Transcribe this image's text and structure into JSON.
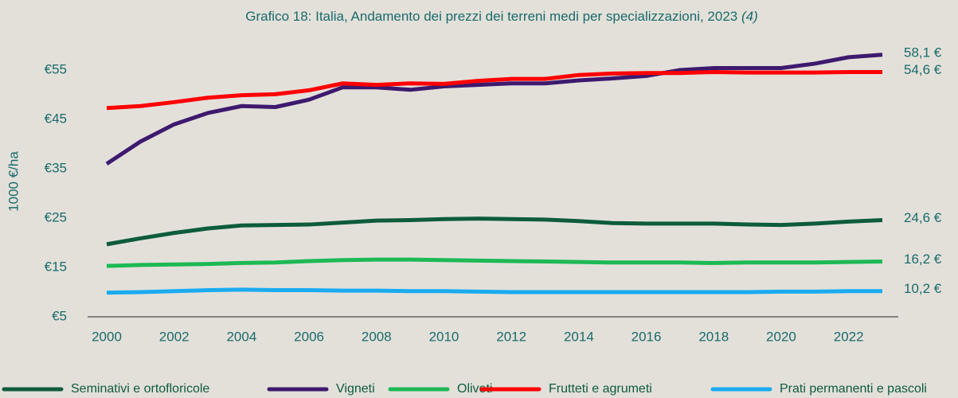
{
  "chart_data": {
    "type": "line",
    "title": "Grafico 18: Italia, Andamento dei prezzi dei terreni medi per specializzazioni, 2023",
    "title_note": "(4)",
    "y_label": "1000 €/ha",
    "x": [
      2000,
      2001,
      2002,
      2003,
      2004,
      2005,
      2006,
      2007,
      2008,
      2009,
      2010,
      2011,
      2012,
      2013,
      2014,
      2015,
      2016,
      2017,
      2018,
      2019,
      2020,
      2021,
      2022,
      2023
    ],
    "xlim": [
      2000,
      2023
    ],
    "xticks": [
      2000,
      2002,
      2004,
      2006,
      2008,
      2010,
      2012,
      2014,
      2016,
      2018,
      2020,
      2022
    ],
    "ylim": [
      5,
      60
    ],
    "yticks": [
      {
        "value": 5,
        "label": "€5"
      },
      {
        "value": 15,
        "label": "€15"
      },
      {
        "value": 25,
        "label": "€25"
      },
      {
        "value": 35,
        "label": "€35"
      },
      {
        "value": 45,
        "label": "€45"
      },
      {
        "value": 55,
        "label": "€55"
      }
    ],
    "grid": false,
    "legend": "bottom",
    "series": [
      {
        "name": "Seminativi e ortofloricole",
        "color": "#0d5c3a",
        "end_label": "24,6 €",
        "values": [
          19.7,
          20.9,
          22,
          22.9,
          23.5,
          23.6,
          23.7,
          24.1,
          24.5,
          24.6,
          24.8,
          24.9,
          24.8,
          24.7,
          24.4,
          24,
          23.9,
          23.9,
          23.9,
          23.7,
          23.6,
          23.9,
          24.3,
          24.6
        ]
      },
      {
        "name": "Vigneti",
        "color": "#3d1a6e",
        "end_label": "58,1 €",
        "values": [
          36,
          40.5,
          44,
          46.3,
          47.7,
          47.5,
          49,
          51.5,
          51.5,
          51,
          51.7,
          52,
          52.3,
          52.3,
          52.9,
          53.3,
          53.8,
          55,
          55.4,
          55.4,
          55.4,
          56.3,
          57.6,
          58.1
        ]
      },
      {
        "name": "Oliveti",
        "color": "#1db954",
        "end_label": "16,2 €",
        "values": [
          15.3,
          15.5,
          15.6,
          15.7,
          15.9,
          16,
          16.3,
          16.5,
          16.6,
          16.6,
          16.5,
          16.4,
          16.3,
          16.2,
          16.1,
          16,
          16,
          16,
          15.9,
          16,
          16,
          16,
          16.1,
          16.2
        ]
      },
      {
        "name": "Frutteti e agrumeti",
        "color": "#ff0000",
        "end_label": "54,6 €",
        "values": [
          47.3,
          47.7,
          48.5,
          49.4,
          49.9,
          50.1,
          50.9,
          52.3,
          52,
          52.3,
          52.2,
          52.8,
          53.2,
          53.2,
          54,
          54.3,
          54.4,
          54.4,
          54.6,
          54.5,
          54.5,
          54.5,
          54.6,
          54.6
        ]
      },
      {
        "name": "Prati permanenti e pascoli",
        "color": "#1aabf0",
        "end_label": "10,2 €",
        "values": [
          9.9,
          10,
          10.2,
          10.4,
          10.5,
          10.4,
          10.4,
          10.3,
          10.3,
          10.2,
          10.2,
          10.1,
          10,
          10,
          10,
          10,
          10,
          10,
          10,
          10,
          10.1,
          10.1,
          10.2,
          10.2
        ]
      }
    ]
  }
}
